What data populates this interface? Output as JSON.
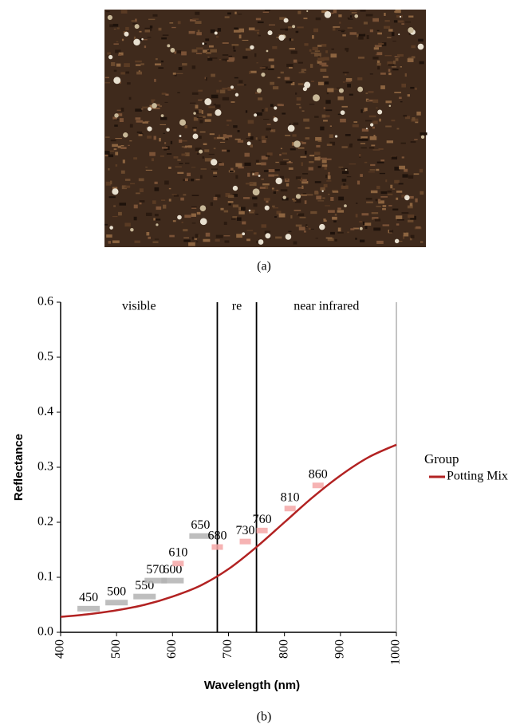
{
  "captions": [
    "(a)",
    "(b)"
  ],
  "chart_data": {
    "type": "line",
    "xlabel": "Wavelength (nm)",
    "ylabel": "Reflectance",
    "xlim": [
      400,
      1000
    ],
    "xticks": [
      400,
      500,
      600,
      700,
      800,
      900,
      1000
    ],
    "ylim": [
      0,
      0.6
    ],
    "yticks": [
      {
        "value": 0,
        "label": "0.0"
      },
      0.1,
      0.2,
      0.3,
      0.4,
      0.5,
      0.6
    ],
    "x": [
      400,
      450,
      500,
      550,
      600,
      650,
      700,
      750,
      800,
      850,
      900,
      950,
      1000
    ],
    "series": [
      {
        "name": "Potting Mix",
        "color": "#b22222",
        "values": [
          0.028,
          0.033,
          0.04,
          0.05,
          0.065,
          0.085,
          0.115,
          0.155,
          0.2,
          0.245,
          0.285,
          0.318,
          0.341
        ]
      }
    ],
    "legend_title": "Group",
    "legend": "right",
    "regions": [
      {
        "label": "visible",
        "start": 400,
        "end": 680
      },
      {
        "label": "re",
        "start": 680,
        "end": 750
      },
      {
        "label": "near infrared",
        "start": 750,
        "end": 1000
      }
    ],
    "bands": [
      {
        "center": 450,
        "width": 40,
        "value": 0.043,
        "color": "#b3b3b3"
      },
      {
        "center": 500,
        "width": 40,
        "value": 0.054,
        "color": "#b3b3b3"
      },
      {
        "center": 550,
        "width": 40,
        "value": 0.065,
        "color": "#b3b3b3"
      },
      {
        "center": 570,
        "width": 40,
        "value": 0.094,
        "color": "#b3b3b3"
      },
      {
        "center": 600,
        "width": 40,
        "value": 0.094,
        "color": "#b3b3b3"
      },
      {
        "center": 610,
        "width": 20,
        "value": 0.125,
        "color": "#f4a6a6"
      },
      {
        "center": 650,
        "width": 40,
        "value": 0.175,
        "color": "#b3b3b3"
      },
      {
        "center": 680,
        "width": 20,
        "value": 0.155,
        "color": "#f4a6a6"
      },
      {
        "center": 730,
        "width": 20,
        "value": 0.165,
        "color": "#f4a6a6"
      },
      {
        "center": 760,
        "width": 20,
        "value": 0.185,
        "color": "#f4a6a6"
      },
      {
        "center": 810,
        "width": 20,
        "value": 0.225,
        "color": "#f4a6a6"
      },
      {
        "center": 860,
        "width": 20,
        "value": 0.267,
        "color": "#f4a6a6"
      }
    ]
  }
}
